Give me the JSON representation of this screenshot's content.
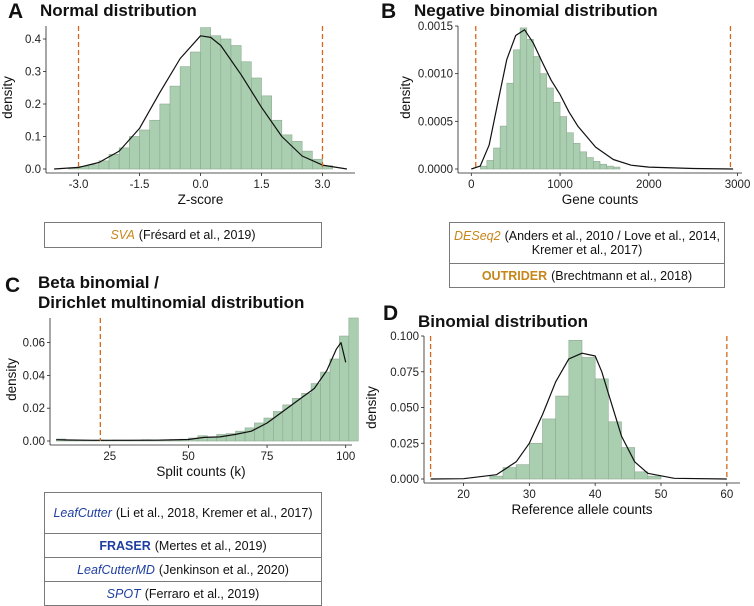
{
  "colors": {
    "bar_fill": "#a9cfb0",
    "bar_stroke": "#8fa892",
    "threshold": "#d2691e",
    "orange_tool": "#c8861a",
    "blue_tool": "#1f3fa0"
  },
  "panels": {
    "A": {
      "letter": "A",
      "title_lines": [
        "Normal distribution"
      ],
      "references": [
        {
          "tool": "SVA",
          "style": "italic",
          "color": "orange",
          "citation": "(Frésard et al., 2019)"
        }
      ]
    },
    "B": {
      "letter": "B",
      "title_lines": [
        "Negative binomial distribution"
      ],
      "references": [
        {
          "tool": "DESeq2",
          "style": "italic",
          "color": "orange",
          "citation": "(Anders et al., 2010 / Love et al., 2014, Kremer et al., 2017)"
        },
        {
          "tool": "OUTRIDER",
          "style": "bold",
          "color": "orange",
          "citation": "(Brechtmann et al., 2018)"
        }
      ]
    },
    "C": {
      "letter": "C",
      "title_lines": [
        "Beta binomial /",
        "Dirichlet multinomial distribution"
      ],
      "references": [
        {
          "tool": "LeafCutter",
          "style": "italic",
          "color": "blue",
          "citation": "(Li et al., 2018, Kremer et al., 2017)"
        },
        {
          "tool": "FRASER",
          "style": "bold",
          "color": "blue",
          "citation": "(Mertes et al., 2019)"
        },
        {
          "tool": "LeafCutterMD",
          "style": "italic",
          "color": "blue",
          "citation": "(Jenkinson et al., 2020)"
        },
        {
          "tool": "SPOT",
          "style": "italic",
          "color": "blue",
          "citation": "(Ferraro et al., 2019)"
        }
      ]
    },
    "D": {
      "letter": "D",
      "title_lines": [
        "Binomial distribution"
      ],
      "references": []
    }
  },
  "chart_data": [
    {
      "panel": "A",
      "type": "bar",
      "title": "Normal distribution",
      "xlabel": "Z-score",
      "ylabel": "density",
      "xlim": [
        -3.8,
        3.8
      ],
      "ylim": [
        0,
        0.44
      ],
      "xticks": [
        -3.0,
        -1.5,
        0.0,
        1.5,
        3.0
      ],
      "xtick_labels": [
        "-3.0",
        "-1.5",
        "0.0",
        "1.5",
        "3.0"
      ],
      "yticks": [
        0.0,
        0.1,
        0.2,
        0.3,
        0.4
      ],
      "ytick_labels": [
        "0.0",
        "0.1",
        "0.2",
        "0.3",
        "0.4"
      ],
      "bin_start": -3.25,
      "bin_width": 0.25,
      "values": [
        0.003,
        0.008,
        0.013,
        0.025,
        0.045,
        0.065,
        0.1,
        0.12,
        0.15,
        0.2,
        0.255,
        0.315,
        0.36,
        0.435,
        0.41,
        0.4,
        0.38,
        0.33,
        0.28,
        0.225,
        0.15,
        0.105,
        0.085,
        0.055,
        0.03,
        0.01
      ],
      "density_curve": {
        "x": [
          -3.6,
          -3.0,
          -2.5,
          -2.0,
          -1.5,
          -1.0,
          -0.5,
          0.0,
          0.25,
          0.5,
          1.0,
          1.5,
          2.0,
          2.5,
          3.0,
          3.6
        ],
        "y": [
          0.0,
          0.005,
          0.02,
          0.055,
          0.125,
          0.235,
          0.34,
          0.41,
          0.405,
          0.38,
          0.29,
          0.19,
          0.1,
          0.04,
          0.012,
          0.0
        ]
      },
      "thresholds": [
        -3.0,
        3.0
      ]
    },
    {
      "panel": "B",
      "type": "bar",
      "title": "Negative binomial distribution",
      "xlabel": "Gene counts",
      "ylabel": "density",
      "xlim": [
        -150,
        3050
      ],
      "ylim": [
        0,
        0.0015
      ],
      "xticks": [
        0,
        1000,
        2000,
        3000
      ],
      "xtick_labels": [
        "0",
        "1000",
        "2000",
        "3000"
      ],
      "yticks": [
        0.0,
        0.0005,
        0.001,
        0.0015
      ],
      "ytick_labels": [
        "0.0000",
        "0.0005",
        "0.0010",
        "0.0015"
      ],
      "bin_start": 100,
      "bin_width": 75,
      "values": [
        3e-05,
        9e-05,
        0.00022,
        0.00045,
        0.0009,
        0.00125,
        0.00148,
        0.00136,
        0.00118,
        0.001,
        0.00085,
        0.0007,
        0.00055,
        0.00038,
        0.00027,
        0.00018,
        0.00012,
        8e-05,
        5e-05,
        3e-05,
        2e-05
      ],
      "density_curve": {
        "x": [
          0,
          100,
          200,
          300,
          400,
          500,
          600,
          700,
          800,
          900,
          1000,
          1100,
          1200,
          1400,
          1600,
          1800,
          2000,
          2500,
          2950
        ],
        "y": [
          0.0,
          3e-05,
          0.00025,
          0.0007,
          0.00115,
          0.0014,
          0.00146,
          0.00132,
          0.00112,
          0.00093,
          0.00078,
          0.0006,
          0.00045,
          0.00023,
          0.0001,
          4e-05,
          2e-05,
          5e-06,
          0.0
        ]
      },
      "thresholds": [
        50,
        2920
      ]
    },
    {
      "panel": "C",
      "type": "bar",
      "title": "Beta binomial / Dirichlet multinomial distribution",
      "xlabel": "Split counts (k)",
      "ylabel": "density",
      "xlim": [
        6,
        102
      ],
      "ylim": [
        0,
        0.075
      ],
      "xticks": [
        25,
        50,
        75,
        100
      ],
      "xtick_labels": [
        "25",
        "50",
        "75",
        "100"
      ],
      "yticks": [
        0.0,
        0.02,
        0.04,
        0.06
      ],
      "ytick_labels": [
        "0.00",
        "0.02",
        "0.04",
        "0.06"
      ],
      "bin_start": 8,
      "bin_width": 3,
      "values": [
        0.0012,
        0.0005,
        0.0005,
        0.0005,
        0.0006,
        0.0005,
        0.0006,
        0.0006,
        0.0006,
        0.0008,
        0.0007,
        0.0008,
        0.0009,
        0.0011,
        0.0018,
        0.0032,
        0.0025,
        0.004,
        0.0045,
        0.006,
        0.008,
        0.011,
        0.014,
        0.018,
        0.022,
        0.026,
        0.029,
        0.035,
        0.042,
        0.05,
        0.064,
        0.075
      ],
      "density_curve": {
        "x": [
          8,
          12,
          20,
          30,
          40,
          50,
          55,
          60,
          65,
          70,
          75,
          80,
          85,
          90,
          94,
          97,
          98.5,
          100
        ],
        "y": [
          0.0008,
          0.0006,
          0.0004,
          0.0004,
          0.0005,
          0.0009,
          0.0022,
          0.0025,
          0.004,
          0.006,
          0.011,
          0.018,
          0.025,
          0.032,
          0.043,
          0.056,
          0.06,
          0.048
        ]
      },
      "thresholds": [
        22
      ]
    },
    {
      "panel": "D",
      "type": "bar",
      "title": "Binomial distribution",
      "xlabel": "Reference allele counts",
      "ylabel": "density",
      "xlim": [
        14,
        62
      ],
      "ylim": [
        0,
        0.1
      ],
      "xticks": [
        20,
        30,
        40,
        50,
        60
      ],
      "xtick_labels": [
        "20",
        "30",
        "40",
        "50",
        "60"
      ],
      "yticks": [
        0.0,
        0.025,
        0.05,
        0.075,
        0.1
      ],
      "ytick_labels": [
        "0.000",
        "0.025",
        "0.050",
        "0.075",
        "0.100"
      ],
      "bin_start": 24,
      "bin_width": 2,
      "values": [
        0.002,
        0.008,
        0.01,
        0.025,
        0.042,
        0.058,
        0.097,
        0.085,
        0.07,
        0.04,
        0.022,
        0.005,
        0.002
      ],
      "density_curve": {
        "x": [
          15,
          20,
          25,
          28,
          30,
          32,
          34,
          36,
          38,
          40,
          41,
          42,
          44,
          46,
          48,
          52,
          60
        ],
        "y": [
          0.0,
          0.0002,
          0.003,
          0.012,
          0.025,
          0.045,
          0.068,
          0.084,
          0.088,
          0.086,
          0.075,
          0.06,
          0.03,
          0.012,
          0.004,
          0.0005,
          0.0
        ]
      },
      "thresholds": [
        15,
        60
      ]
    }
  ]
}
